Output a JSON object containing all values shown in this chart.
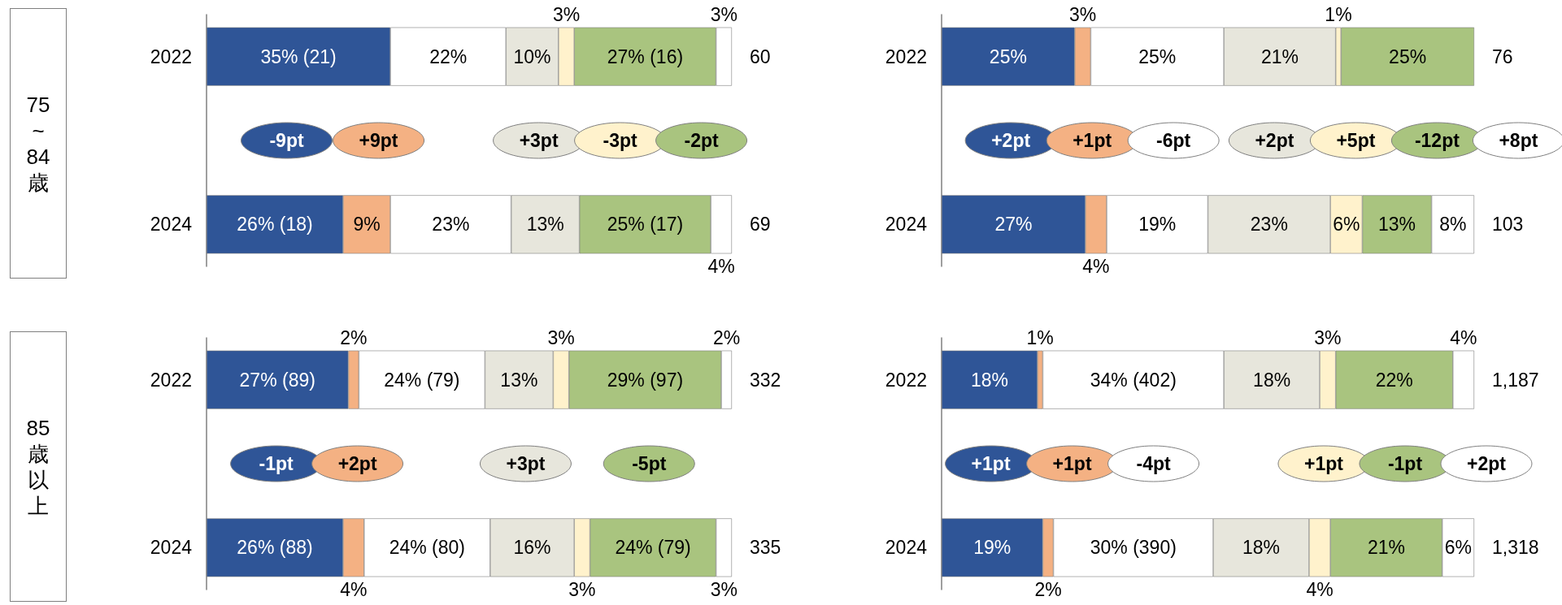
{
  "chart_data": [
    {
      "type": "bar",
      "orientation": "horizontal",
      "stacked": true,
      "ylabel": "75~84歳",
      "categories": [
        "2022",
        null,
        "2024"
      ],
      "xlim": [
        0,
        100
      ],
      "tick_labels": "y",
      "annotations": [
        "60",
        "69"
      ],
      "series": [
        {
          "color": "#2f5597",
          "values": [
            35,
            null,
            26
          ],
          "value_labels": [
            "35% (21)",
            "-9pt",
            "26% (18)"
          ]
        },
        {
          "color": "#f4b183",
          "values": [
            0,
            null,
            9
          ],
          "value_labels": [
            null,
            "+9pt",
            "9%"
          ]
        },
        {
          "color": "#ffffff",
          "values": [
            22,
            null,
            23
          ],
          "value_labels": [
            "22%",
            null,
            "23%"
          ]
        },
        {
          "color": "#e7e6dc",
          "values": [
            10,
            null,
            13
          ],
          "value_labels": [
            "10%",
            "+3pt",
            "13%"
          ]
        },
        {
          "color": "#fff2cc",
          "values": [
            3,
            null,
            0
          ],
          "value_labels": [
            "3%",
            "-3pt",
            null
          ]
        },
        {
          "color": "#a9c47f",
          "values": [
            27,
            null,
            25
          ],
          "value_labels": [
            "27% (16)",
            "-2pt",
            "25% (17)"
          ]
        },
        {
          "color": "#ffffff",
          "values": [
            3,
            null,
            4
          ],
          "value_labels": [
            "3%",
            null,
            "4%"
          ]
        }
      ]
    },
    {
      "type": "bar",
      "orientation": "horizontal",
      "stacked": true,
      "categories": [
        "2022",
        null,
        "2024"
      ],
      "xlim": [
        0,
        100
      ],
      "tick_labels": "y",
      "annotations": [
        "76",
        "103"
      ],
      "series": [
        {
          "color": "#2f5597",
          "values": [
            25,
            null,
            27
          ],
          "value_labels": [
            "25%",
            "+2pt",
            "27%"
          ]
        },
        {
          "color": "#f4b183",
          "values": [
            3,
            null,
            4
          ],
          "value_labels": [
            "3%",
            "+1pt",
            "4%"
          ]
        },
        {
          "color": "#ffffff",
          "values": [
            25,
            null,
            19
          ],
          "value_labels": [
            "25%",
            "-6pt",
            "19%"
          ]
        },
        {
          "color": "#e7e6dc",
          "values": [
            21,
            null,
            23
          ],
          "value_labels": [
            "21%",
            "+2pt",
            "23%"
          ]
        },
        {
          "color": "#fff2cc",
          "values": [
            1,
            null,
            6
          ],
          "value_labels": [
            "1%",
            "+5pt",
            "6%"
          ]
        },
        {
          "color": "#a9c47f",
          "values": [
            25,
            null,
            13
          ],
          "value_labels": [
            "25%",
            "-12pt",
            "13%"
          ]
        },
        {
          "color": "#ffffff",
          "values": [
            0,
            null,
            8
          ],
          "value_labels": [
            null,
            "+8pt",
            "8%"
          ]
        }
      ]
    },
    {
      "type": "bar",
      "orientation": "horizontal",
      "stacked": true,
      "ylabel": "85歳以上",
      "categories": [
        "2022",
        null,
        "2024"
      ],
      "xlim": [
        0,
        100
      ],
      "tick_labels": "y",
      "annotations": [
        "332",
        "335"
      ],
      "series": [
        {
          "color": "#2f5597",
          "values": [
            27,
            null,
            26
          ],
          "value_labels": [
            "27% (89)",
            "-1pt",
            "26% (88)"
          ]
        },
        {
          "color": "#f4b183",
          "values": [
            2,
            null,
            4
          ],
          "value_labels": [
            "2%",
            "+2pt",
            "4%"
          ]
        },
        {
          "color": "#ffffff",
          "values": [
            24,
            null,
            24
          ],
          "value_labels": [
            "24% (79)",
            null,
            "24% (80)"
          ]
        },
        {
          "color": "#e7e6dc",
          "values": [
            13,
            null,
            16
          ],
          "value_labels": [
            "13%",
            "+3pt",
            "16%"
          ]
        },
        {
          "color": "#fff2cc",
          "values": [
            3,
            null,
            3
          ],
          "value_labels": [
            "3%",
            null,
            "3%"
          ]
        },
        {
          "color": "#a9c47f",
          "values": [
            29,
            null,
            24
          ],
          "value_labels": [
            "29% (97)",
            "-5pt",
            "24% (79)"
          ]
        },
        {
          "color": "#ffffff",
          "values": [
            2,
            null,
            3
          ],
          "value_labels": [
            "2%",
            null,
            "3%"
          ]
        }
      ]
    },
    {
      "type": "bar",
      "orientation": "horizontal",
      "stacked": true,
      "categories": [
        "2022",
        null,
        "2024"
      ],
      "xlim": [
        0,
        100
      ],
      "tick_labels": "y",
      "annotations": [
        "1,187",
        "1,318"
      ],
      "series": [
        {
          "color": "#2f5597",
          "values": [
            18,
            null,
            19
          ],
          "value_labels": [
            "18%",
            "+1pt",
            "19%"
          ]
        },
        {
          "color": "#f4b183",
          "values": [
            1,
            null,
            2
          ],
          "value_labels": [
            "1%",
            "+1pt",
            "2%"
          ]
        },
        {
          "color": "#ffffff",
          "values": [
            34,
            null,
            30
          ],
          "value_labels": [
            "34% (402)",
            "-4pt",
            "30% (390)"
          ]
        },
        {
          "color": "#e7e6dc",
          "values": [
            18,
            null,
            18
          ],
          "value_labels": [
            "18%",
            null,
            "18%"
          ]
        },
        {
          "color": "#fff2cc",
          "values": [
            3,
            null,
            4
          ],
          "value_labels": [
            "3%",
            "+1pt",
            "4%"
          ]
        },
        {
          "color": "#a9c47f",
          "values": [
            22,
            null,
            21
          ],
          "value_labels": [
            "22%",
            "-1pt",
            "21%"
          ]
        },
        {
          "color": "#ffffff",
          "values": [
            4,
            null,
            6
          ],
          "value_labels": [
            "4%",
            "+2pt",
            "6%"
          ]
        }
      ]
    }
  ]
}
